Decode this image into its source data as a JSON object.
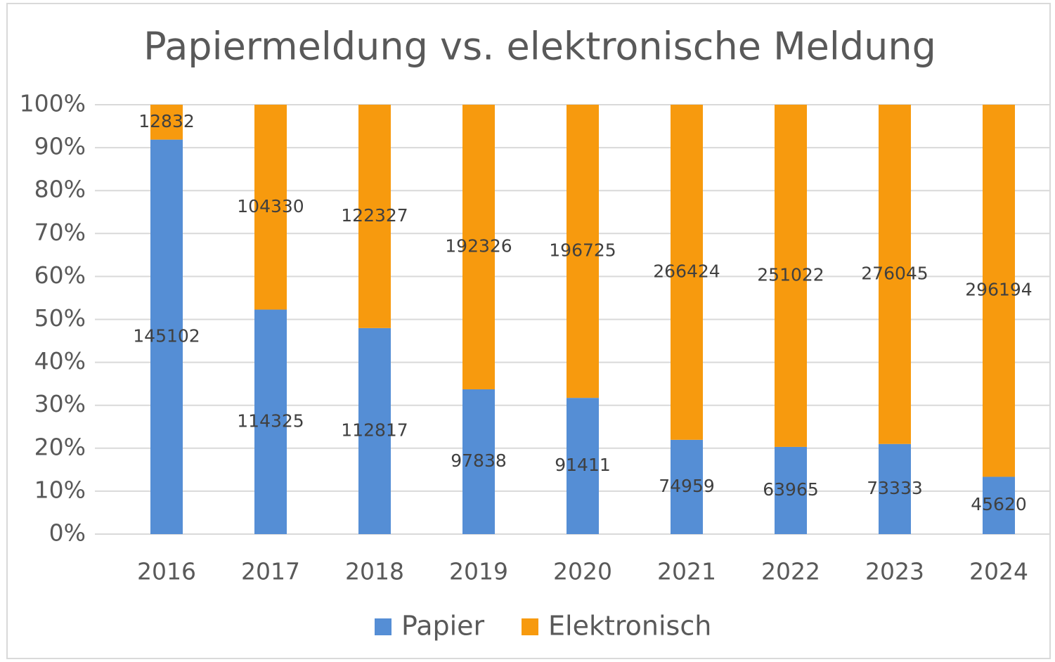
{
  "chart_data": {
    "type": "bar",
    "stacked": "percent",
    "title": "Papiermeldung vs. elektronische Meldung",
    "categories": [
      "2016",
      "2017",
      "2018",
      "2019",
      "2020",
      "2021",
      "2022",
      "2023",
      "2024"
    ],
    "series": [
      {
        "name": "Papier",
        "color": "#558ed5",
        "values": [
          145102,
          114325,
          112817,
          97838,
          91411,
          74959,
          63965,
          73333,
          45620
        ]
      },
      {
        "name": "Elektronisch",
        "color": "#f79a0e",
        "values": [
          12832,
          104330,
          122327,
          192326,
          196725,
          266424,
          251022,
          276045,
          296194
        ]
      }
    ],
    "ylim": [
      0,
      100
    ],
    "yticks": [
      {
        "value": 0,
        "label": "0%"
      },
      {
        "value": 10,
        "label": "10%"
      },
      {
        "value": 20,
        "label": "20%"
      },
      {
        "value": 30,
        "label": "30%"
      },
      {
        "value": 40,
        "label": "40%"
      },
      {
        "value": 50,
        "label": "50%"
      },
      {
        "value": 60,
        "label": "60%"
      },
      {
        "value": 70,
        "label": "70%"
      },
      {
        "value": 80,
        "label": "80%"
      },
      {
        "value": 90,
        "label": "90%"
      },
      {
        "value": 100,
        "label": "100%"
      }
    ],
    "grid": true,
    "legend": "bottom"
  }
}
